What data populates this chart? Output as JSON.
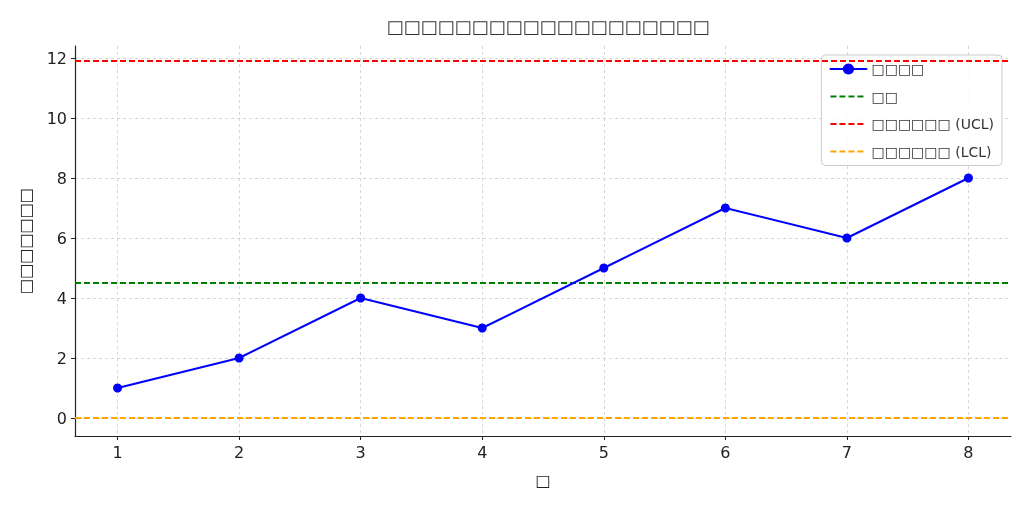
{
  "chart_data": {
    "type": "line",
    "title": "□□□□□□□□□□□□□□□□□□□",
    "xlabel": "□",
    "ylabel": "□□□□□□□",
    "x": [
      1,
      2,
      3,
      4,
      5,
      6,
      7,
      8
    ],
    "series": [
      {
        "name": "□□□□",
        "color": "#0000ff",
        "values": [
          1,
          2,
          4,
          3,
          5,
          7,
          6,
          8
        ]
      }
    ],
    "ref_lines": [
      {
        "axis": "y",
        "value": 4.5,
        "label": "□□",
        "color": "#008000",
        "line_style": "dashed"
      },
      {
        "axis": "y",
        "value": 11.9,
        "label": "□□□□□□ (UCL)",
        "color": "#ff0000",
        "line_style": "dashed"
      },
      {
        "axis": "y",
        "value": 0,
        "label": "□□□□□□ (LCL)",
        "color": "#ffa500",
        "line_style": "dashed"
      }
    ],
    "xlim": [
      0.65,
      8.35
    ],
    "xticks": [
      1,
      2,
      3,
      4,
      5,
      6,
      7,
      8
    ],
    "ylim": [
      -0.6,
      12.4
    ],
    "yticks": [
      0,
      2,
      4,
      6,
      8,
      10,
      12
    ],
    "grid": true,
    "legend": "top right",
    "marker": "circle",
    "line_style": "solid"
  }
}
